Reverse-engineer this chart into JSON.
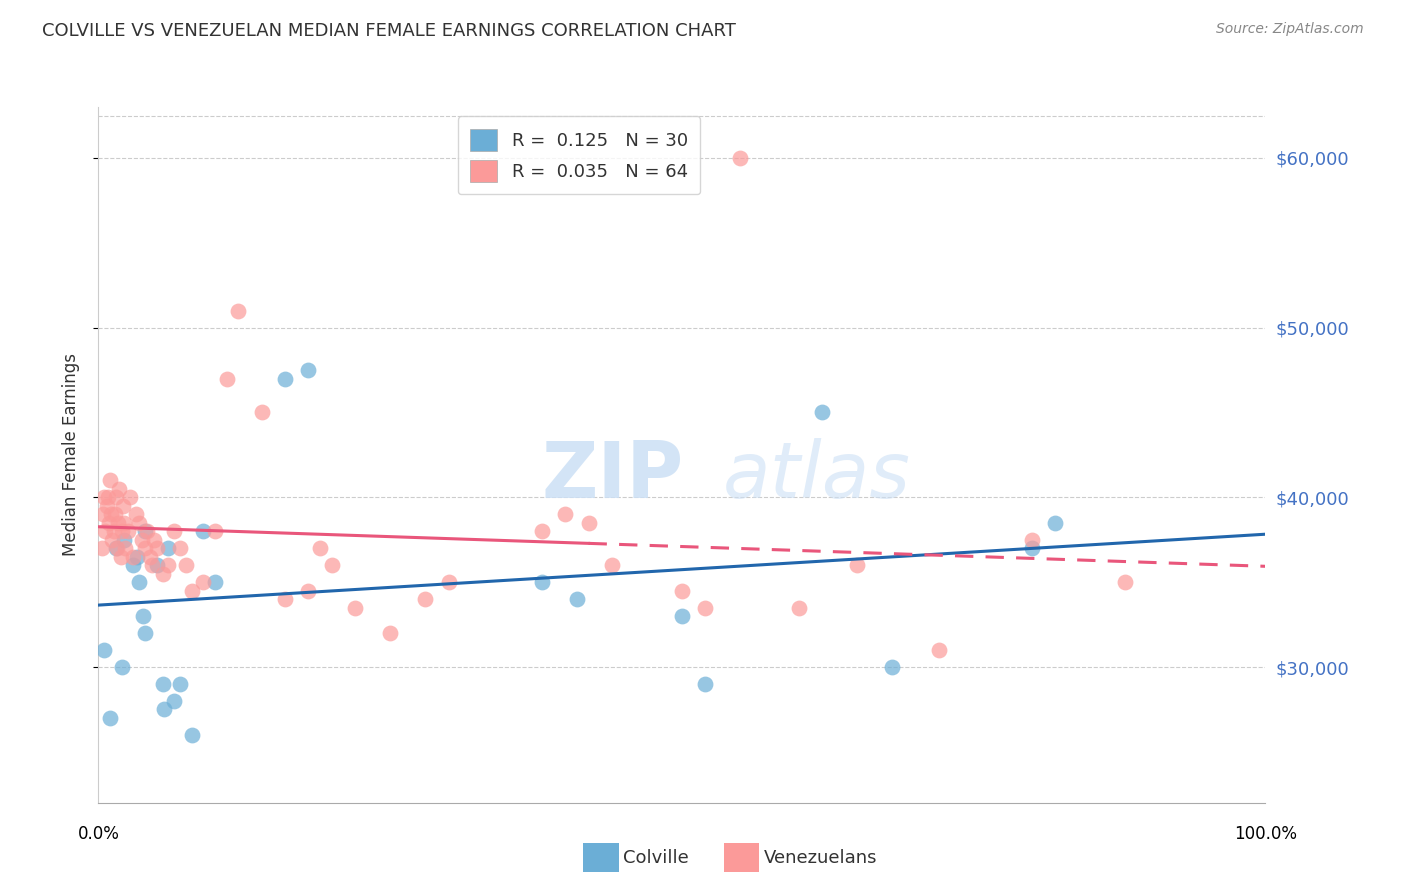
{
  "title": "COLVILLE VS VENEZUELAN MEDIAN FEMALE EARNINGS CORRELATION CHART",
  "source": "Source: ZipAtlas.com",
  "ylabel": "Median Female Earnings",
  "ytick_labels": [
    "$30,000",
    "$40,000",
    "$50,000",
    "$60,000"
  ],
  "ytick_values": [
    30000,
    40000,
    50000,
    60000
  ],
  "ymin": 22000,
  "ymax": 63000,
  "xmin": 0.0,
  "xmax": 1.0,
  "legend_blue_R": "0.125",
  "legend_blue_N": "30",
  "legend_pink_R": "0.035",
  "legend_pink_N": "64",
  "blue_color": "#6baed6",
  "pink_color": "#fb9a99",
  "blue_line_color": "#2166ac",
  "pink_line_color": "#e9567b",
  "colville_x": [
    0.005,
    0.01,
    0.015,
    0.02,
    0.022,
    0.03,
    0.033,
    0.035,
    0.038,
    0.04,
    0.04,
    0.05,
    0.055,
    0.056,
    0.06,
    0.065,
    0.07,
    0.08,
    0.09,
    0.1,
    0.16,
    0.18,
    0.38,
    0.41,
    0.5,
    0.52,
    0.62,
    0.68,
    0.8,
    0.82
  ],
  "colville_y": [
    31000,
    27000,
    37000,
    30000,
    37500,
    36000,
    36500,
    35000,
    33000,
    38000,
    32000,
    36000,
    29000,
    27500,
    37000,
    28000,
    29000,
    26000,
    38000,
    35000,
    47000,
    47500,
    35000,
    34000,
    33000,
    29000,
    45000,
    30000,
    37000,
    38500
  ],
  "venezuelan_x": [
    0.003,
    0.004,
    0.005,
    0.006,
    0.007,
    0.008,
    0.009,
    0.01,
    0.011,
    0.012,
    0.013,
    0.014,
    0.015,
    0.016,
    0.017,
    0.018,
    0.019,
    0.02,
    0.021,
    0.022,
    0.023,
    0.025,
    0.027,
    0.03,
    0.032,
    0.035,
    0.037,
    0.04,
    0.042,
    0.044,
    0.046,
    0.048,
    0.05,
    0.055,
    0.06,
    0.065,
    0.07,
    0.075,
    0.08,
    0.09,
    0.1,
    0.11,
    0.12,
    0.14,
    0.16,
    0.18,
    0.19,
    0.2,
    0.22,
    0.25,
    0.28,
    0.3,
    0.38,
    0.4,
    0.42,
    0.44,
    0.5,
    0.52,
    0.55,
    0.6,
    0.65,
    0.72,
    0.8,
    0.88
  ],
  "venezuelan_y": [
    37000,
    39000,
    40000,
    38000,
    39500,
    40000,
    38500,
    41000,
    39000,
    37500,
    38000,
    39000,
    40000,
    37000,
    38500,
    40500,
    36500,
    38000,
    39500,
    38500,
    37000,
    38000,
    40000,
    36500,
    39000,
    38500,
    37500,
    37000,
    38000,
    36500,
    36000,
    37500,
    37000,
    35500,
    36000,
    38000,
    37000,
    36000,
    34500,
    35000,
    38000,
    47000,
    51000,
    45000,
    34000,
    34500,
    37000,
    36000,
    33500,
    32000,
    34000,
    35000,
    38000,
    39000,
    38500,
    36000,
    34500,
    33500,
    60000,
    33500,
    36000,
    31000,
    37500,
    35000
  ]
}
